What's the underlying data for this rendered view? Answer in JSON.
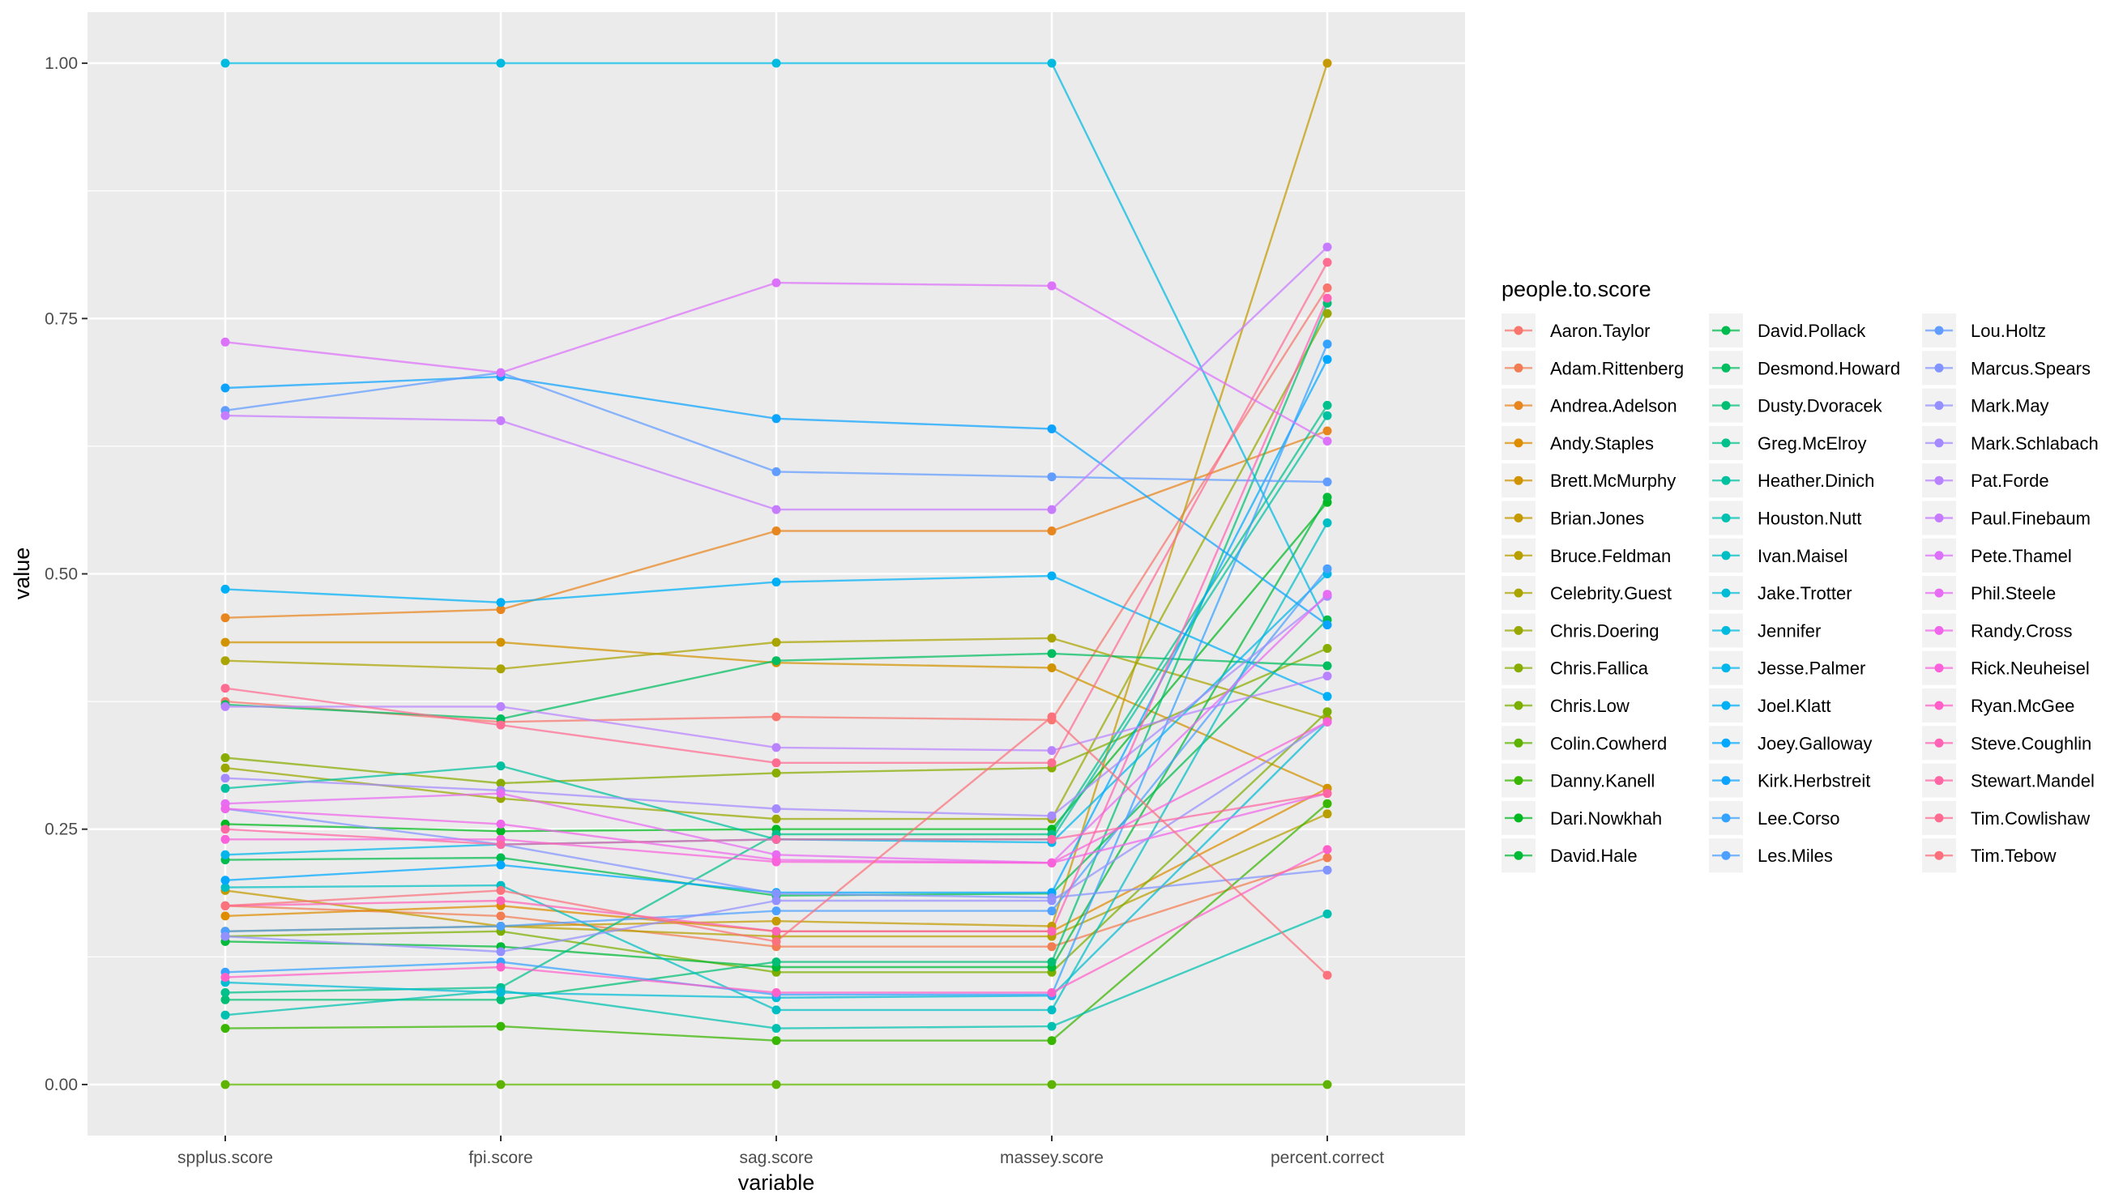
{
  "chart_data": {
    "type": "line",
    "title": "",
    "xlabel": "variable",
    "ylabel": "value",
    "categories": [
      "spplus.score",
      "fpi.score",
      "sag.score",
      "massey.score",
      "percent.correct"
    ],
    "ylim": [
      -0.05,
      1.05
    ],
    "yticks": [
      "0.00",
      "0.25",
      "0.50",
      "0.75",
      "1.00"
    ],
    "ytick_values": [
      0,
      0.25,
      0.5,
      0.75,
      1.0
    ],
    "grid": true,
    "legend_title": "people.to.score",
    "legend_position": "right",
    "series": [
      {
        "name": "Aaron.Taylor",
        "color": "#F8766D",
        "values": [
          0.375,
          0.355,
          0.36,
          0.357,
          0.78
        ]
      },
      {
        "name": "Adam.Rittenberg",
        "color": "#F27D52",
        "values": [
          0.175,
          0.165,
          0.135,
          0.135,
          0.222
        ]
      },
      {
        "name": "Andrea.Adelson",
        "color": "#E7851E",
        "values": [
          0.457,
          0.465,
          0.542,
          0.542,
          0.64
        ]
      },
      {
        "name": "Andy.Staples",
        "color": "#DE8C00",
        "values": [
          0.165,
          0.175,
          0.15,
          0.15,
          0.29
        ]
      },
      {
        "name": "Brett.McMurphy",
        "color": "#D19300",
        "values": [
          0.433,
          0.433,
          0.413,
          0.408,
          0.29
        ]
      },
      {
        "name": "Brian.Jones",
        "color": "#C49A00",
        "values": [
          0.19,
          0.155,
          0.16,
          0.155,
          1.0
        ]
      },
      {
        "name": "Bruce.Feldman",
        "color": "#B79F00",
        "values": [
          0.15,
          0.155,
          0.145,
          0.145,
          0.265
        ]
      },
      {
        "name": "Celebrity.Guest",
        "color": "#A9A400",
        "values": [
          0.415,
          0.407,
          0.433,
          0.437,
          0.358
        ]
      },
      {
        "name": "Chris.Doering",
        "color": "#99A800",
        "values": [
          0.31,
          0.28,
          0.26,
          0.26,
          0.755
        ]
      },
      {
        "name": "Chris.Fallica",
        "color": "#88AC00",
        "values": [
          0.32,
          0.295,
          0.305,
          0.31,
          0.427
        ]
      },
      {
        "name": "Chris.Low",
        "color": "#7CAE00",
        "values": [
          0.145,
          0.15,
          0.11,
          0.11,
          0.365
        ]
      },
      {
        "name": "Colin.Cowherd",
        "color": "#5EB300",
        "values": [
          0.0,
          0.0,
          0.0,
          0.0,
          0.0
        ]
      },
      {
        "name": "Danny.Kanell",
        "color": "#39B600",
        "values": [
          0.055,
          0.057,
          0.043,
          0.043,
          0.275
        ]
      },
      {
        "name": "Dari.Nowkhah",
        "color": "#00B81F",
        "values": [
          0.255,
          0.248,
          0.25,
          0.25,
          0.57
        ]
      },
      {
        "name": "David.Hale",
        "color": "#00BA38",
        "values": [
          0.14,
          0.135,
          0.115,
          0.115,
          0.575
        ]
      },
      {
        "name": "David.Pollack",
        "color": "#00BB4E",
        "values": [
          0.22,
          0.222,
          0.185,
          0.187,
          0.455
        ]
      },
      {
        "name": "Desmond.Howard",
        "color": "#00BD5F",
        "values": [
          0.372,
          0.358,
          0.415,
          0.422,
          0.41
        ]
      },
      {
        "name": "Dusty.Dvoracek",
        "color": "#00BF74",
        "values": [
          0.083,
          0.083,
          0.12,
          0.12,
          0.765
        ]
      },
      {
        "name": "Greg.McElroy",
        "color": "#00C08B",
        "values": [
          0.09,
          0.095,
          0.245,
          0.245,
          0.665
        ]
      },
      {
        "name": "Heather.Dinich",
        "color": "#00C19F",
        "values": [
          0.29,
          0.312,
          0.24,
          0.24,
          0.655
        ]
      },
      {
        "name": "Houston.Nutt",
        "color": "#00C0B0",
        "values": [
          0.068,
          0.092,
          0.055,
          0.057,
          0.167
        ]
      },
      {
        "name": "Ivan.Maisel",
        "color": "#00BFC4",
        "values": [
          0.193,
          0.195,
          0.073,
          0.073,
          0.55
        ]
      },
      {
        "name": "Jake.Trotter",
        "color": "#00BDD5",
        "values": [
          0.1,
          0.09,
          0.085,
          0.087,
          0.355
        ]
      },
      {
        "name": "Jennifer",
        "color": "#00BAE0",
        "values": [
          1.0,
          1.0,
          1.0,
          1.0,
          0.45
        ]
      },
      {
        "name": "Jesse.Palmer",
        "color": "#00B6EB",
        "values": [
          0.225,
          0.235,
          0.24,
          0.237,
          0.5
        ]
      },
      {
        "name": "Joel.Klatt",
        "color": "#00B0F6",
        "values": [
          0.485,
          0.472,
          0.492,
          0.498,
          0.38
        ]
      },
      {
        "name": "Joey.Galloway",
        "color": "#00A9FF",
        "values": [
          0.2,
          0.215,
          0.188,
          0.188,
          0.71
        ]
      },
      {
        "name": "Kirk.Herbstreit",
        "color": "#0CA3FF",
        "values": [
          0.682,
          0.693,
          0.652,
          0.642,
          0.45
        ]
      },
      {
        "name": "Lee.Corso",
        "color": "#35A2FF",
        "values": [
          0.11,
          0.12,
          0.088,
          0.088,
          0.725
        ]
      },
      {
        "name": "Les.Miles",
        "color": "#4CA0FF",
        "values": [
          0.15,
          0.155,
          0.17,
          0.17,
          0.505
        ]
      },
      {
        "name": "Lou.Holtz",
        "color": "#619CFF",
        "values": [
          0.66,
          0.697,
          0.6,
          0.595,
          0.59
        ]
      },
      {
        "name": "Marcus.Spears",
        "color": "#8294FF",
        "values": [
          0.27,
          0.235,
          0.187,
          0.183,
          0.21
        ]
      },
      {
        "name": "Mark.May",
        "color": "#9590FF",
        "values": [
          0.145,
          0.13,
          0.18,
          0.18,
          0.355
        ]
      },
      {
        "name": "Mark.Schlabach",
        "color": "#A58AFF",
        "values": [
          0.3,
          0.288,
          0.27,
          0.263,
          0.478
        ]
      },
      {
        "name": "Pat.Forde",
        "color": "#B983FF",
        "values": [
          0.37,
          0.37,
          0.33,
          0.327,
          0.4
        ]
      },
      {
        "name": "Paul.Finebaum",
        "color": "#C77CFF",
        "values": [
          0.655,
          0.65,
          0.563,
          0.563,
          0.82
        ]
      },
      {
        "name": "Pete.Thamel",
        "color": "#DC71FA",
        "values": [
          0.727,
          0.697,
          0.785,
          0.782,
          0.63
        ]
      },
      {
        "name": "Phil.Steele",
        "color": "#E76BF3",
        "values": [
          0.275,
          0.285,
          0.225,
          0.217,
          0.48
        ]
      },
      {
        "name": "Randy.Cross",
        "color": "#F066EA",
        "values": [
          0.27,
          0.255,
          0.22,
          0.217,
          0.285
        ]
      },
      {
        "name": "Rick.Neuheisel",
        "color": "#FA62DB",
        "values": [
          0.24,
          0.24,
          0.218,
          0.217,
          0.355
        ]
      },
      {
        "name": "Ryan.McGee",
        "color": "#FF61C9",
        "values": [
          0.105,
          0.115,
          0.09,
          0.09,
          0.23
        ]
      },
      {
        "name": "Steve.Coughlin",
        "color": "#FF63B6",
        "values": [
          0.175,
          0.18,
          0.15,
          0.15,
          0.77
        ]
      },
      {
        "name": "Stewart.Mandel",
        "color": "#FF67A4",
        "values": [
          0.25,
          0.235,
          0.24,
          0.24,
          0.285
        ]
      },
      {
        "name": "Tim.Cowlishaw",
        "color": "#FF6C91",
        "values": [
          0.388,
          0.352,
          0.315,
          0.315,
          0.805
        ]
      },
      {
        "name": "Tim.Tebow",
        "color": "#FB727C",
        "values": [
          0.175,
          0.19,
          0.14,
          0.36,
          0.107
        ]
      }
    ]
  }
}
